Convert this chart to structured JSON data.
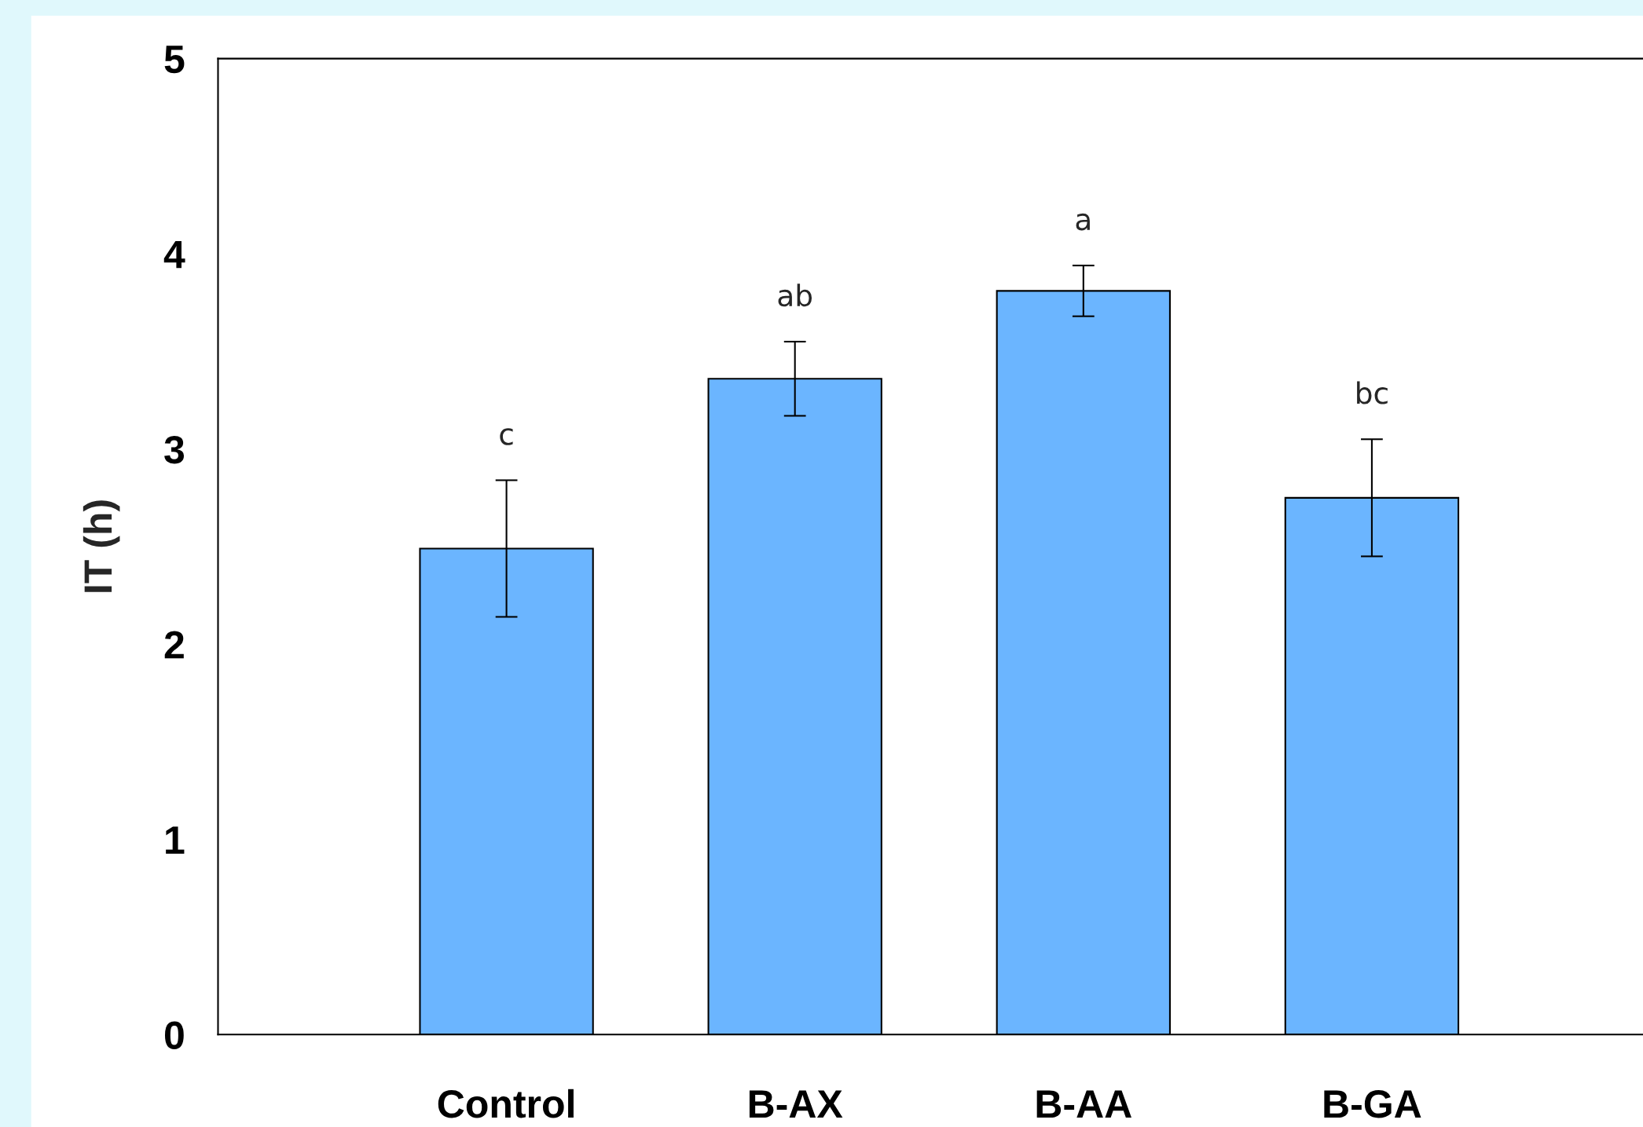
{
  "chart_data": {
    "type": "bar",
    "ylabel": "IT (h)",
    "categories": [
      "Control",
      "B-AX",
      "B-AA",
      "B-GA"
    ],
    "values": [
      2.49,
      3.36,
      3.81,
      2.75
    ],
    "errors": [
      0.35,
      0.19,
      0.13,
      0.3
    ],
    "color": "#6bb5ff",
    "ylim": [
      0,
      5
    ],
    "yticks": [
      0,
      1,
      2,
      3,
      4,
      5
    ],
    "grid": false,
    "legend": false,
    "annotations": [
      "c",
      "ab",
      "a",
      "bc"
    ]
  }
}
